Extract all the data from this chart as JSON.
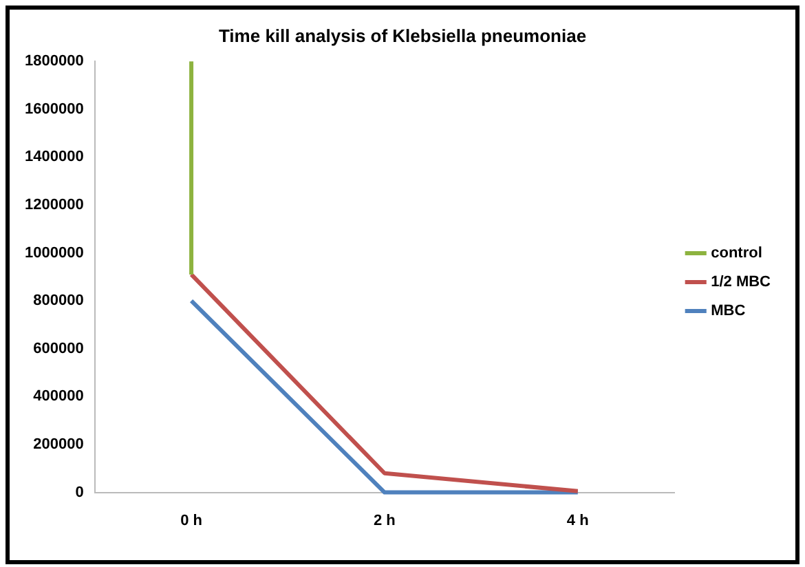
{
  "chart_data": {
    "type": "line",
    "title": "Time kill analysis of Klebsiella pneumoniae",
    "xlim": [
      -1,
      5
    ],
    "xticks": [
      {
        "value": 0,
        "label": "0 h"
      },
      {
        "value": 2,
        "label": "2 h"
      },
      {
        "value": 4,
        "label": "4 h"
      }
    ],
    "ylim": [
      0,
      1800000
    ],
    "yticks": [
      0,
      200000,
      400000,
      600000,
      800000,
      1000000,
      1200000,
      1400000,
      1600000,
      1800000
    ],
    "series": [
      {
        "name": "control",
        "color": "#8db33f",
        "x": [
          0,
          0
        ],
        "values": [
          910000,
          1800000
        ]
      },
      {
        "name": "1/2 MBC",
        "color": "#c0504d",
        "x": [
          0,
          2,
          4
        ],
        "values": [
          910000,
          80000,
          5000
        ]
      },
      {
        "name": "MBC",
        "color": "#4f81bd",
        "x": [
          0,
          2,
          4
        ],
        "values": [
          800000,
          0,
          0
        ]
      }
    ],
    "grid": false,
    "legend": "right",
    "marker": "none"
  }
}
